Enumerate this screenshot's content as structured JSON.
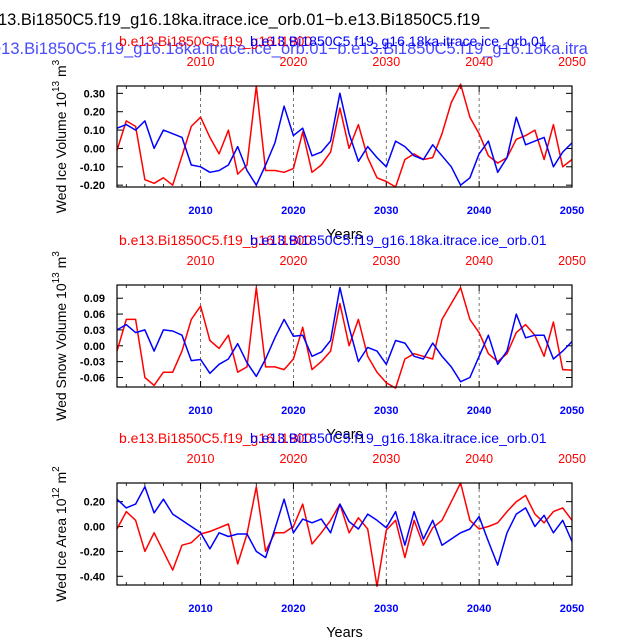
{
  "title": {
    "line1": "13.Bi1850C5.f19_g16.18ka.itrace.ice_orb.01−b.e13.Bi1850C5.f19_",
    "line2": "e13.Bi1850C5.f19_g16.18ka.itrace.ice_orb.01−b.e13.Bi1850C5.f19_g16.18ka.itra",
    "line1_color": "#000000",
    "line2_color": "#4a4aff"
  },
  "colors": {
    "red": "#ff0000",
    "blue": "#0000ff",
    "axis": "#000000"
  },
  "chart_data": [
    {
      "type": "line",
      "legend_red": "b.e13.Bi1850C5.f19_g16.i1900",
      "legend_blue": "b.e13.Bi1850C5.f19_g16.18ka.itrace.ice_orb.01",
      "ylabel": "Wed Ice Volume 10^13 m^3",
      "ylabel_main": "Wed Ice Volume 10",
      "ylabel_exp1": "13",
      "ylabel_mid": " m",
      "ylabel_exp2": "3",
      "xlabel": "Years",
      "xlim": [
        2001,
        2050
      ],
      "ylim": [
        -0.21,
        0.34
      ],
      "yticks": [
        -0.2,
        -0.1,
        0.0,
        0.1,
        0.2,
        0.3
      ],
      "yticklabels": [
        "-0.20",
        "-0.10",
        "0.00",
        "0.10",
        "0.20",
        "0.30"
      ],
      "xticks": [
        2010,
        2020,
        2030,
        2040,
        2050
      ],
      "xticklabels": [
        "2010",
        "2020",
        "2030",
        "2040",
        "2050"
      ],
      "x": [
        2001,
        2002,
        2003,
        2004,
        2005,
        2006,
        2007,
        2008,
        2009,
        2010,
        2011,
        2012,
        2013,
        2014,
        2015,
        2016,
        2017,
        2018,
        2019,
        2020,
        2021,
        2022,
        2023,
        2024,
        2025,
        2026,
        2027,
        2028,
        2029,
        2030,
        2031,
        2032,
        2033,
        2034,
        2035,
        2036,
        2037,
        2038,
        2039,
        2040,
        2041,
        2042,
        2043,
        2044,
        2045,
        2046,
        2047,
        2048,
        2049,
        2050
      ],
      "series": [
        {
          "name": "b.e13.Bi1850C5.f19_g16.i1900",
          "color": "red",
          "values": [
            -0.01,
            0.15,
            0.12,
            -0.17,
            -0.19,
            -0.16,
            -0.2,
            -0.04,
            0.12,
            0.17,
            0.06,
            -0.03,
            0.1,
            -0.14,
            -0.09,
            0.34,
            -0.12,
            -0.12,
            -0.13,
            -0.11,
            0.09,
            -0.13,
            -0.09,
            -0.02,
            0.22,
            0.0,
            0.13,
            -0.05,
            -0.16,
            -0.18,
            -0.21,
            -0.06,
            -0.03,
            -0.06,
            -0.05,
            0.08,
            0.25,
            0.35,
            0.17,
            0.08,
            -0.04,
            -0.08,
            -0.05,
            0.05,
            0.07,
            0.1,
            -0.06,
            0.13,
            -0.1,
            -0.06
          ]
        },
        {
          "name": "b.e13.Bi1850C5.f19_g16.18ka.itrace.ice_orb.01",
          "color": "blue",
          "values": [
            0.11,
            0.13,
            0.1,
            0.15,
            0.0,
            0.1,
            0.08,
            0.06,
            -0.09,
            -0.1,
            -0.13,
            -0.12,
            -0.09,
            0.01,
            -0.12,
            -0.2,
            -0.09,
            0.03,
            0.23,
            0.07,
            0.11,
            -0.04,
            -0.02,
            0.04,
            0.3,
            0.08,
            -0.07,
            0.01,
            -0.05,
            -0.1,
            0.04,
            0.01,
            -0.04,
            -0.06,
            0.02,
            -0.04,
            -0.1,
            -0.2,
            -0.16,
            -0.03,
            0.04,
            -0.13,
            -0.05,
            0.17,
            0.02,
            0.04,
            0.06,
            -0.1,
            -0.02,
            0.03
          ]
        }
      ]
    },
    {
      "type": "line",
      "legend_red": "b.e13.Bi1850C5.f19_g16.i1900",
      "legend_blue": "b.e13.Bi1850C5.f19_g16.18ka.itrace.ice_orb.01",
      "ylabel": "Wed Snow Volume 10^13 m^3",
      "ylabel_main": "Wed Snow Volume 10",
      "ylabel_exp1": "13",
      "ylabel_mid": " m",
      "ylabel_exp2": "3",
      "xlabel": "Years",
      "xlim": [
        2001,
        2050
      ],
      "ylim": [
        -0.078,
        0.115
      ],
      "yticks": [
        -0.06,
        -0.03,
        0.0,
        0.03,
        0.06,
        0.09
      ],
      "yticklabels": [
        "-0.06",
        "-0.03",
        "0.00",
        "0.03",
        "0.06",
        "0.09"
      ],
      "xticks": [
        2010,
        2020,
        2030,
        2040,
        2050
      ],
      "xticklabels": [
        "2010",
        "2020",
        "2030",
        "2040",
        "2050"
      ],
      "x": [
        2001,
        2002,
        2003,
        2004,
        2005,
        2006,
        2007,
        2008,
        2009,
        2010,
        2011,
        2012,
        2013,
        2014,
        2015,
        2016,
        2017,
        2018,
        2019,
        2020,
        2021,
        2022,
        2023,
        2024,
        2025,
        2026,
        2027,
        2028,
        2029,
        2030,
        2031,
        2032,
        2033,
        2034,
        2035,
        2036,
        2037,
        2038,
        2039,
        2040,
        2041,
        2042,
        2043,
        2044,
        2045,
        2046,
        2047,
        2048,
        2049,
        2050
      ],
      "series": [
        {
          "name": "b.e13.Bi1850C5.f19_g16.i1900",
          "color": "red",
          "values": [
            -0.01,
            0.05,
            0.05,
            -0.06,
            -0.075,
            -0.05,
            -0.05,
            -0.01,
            0.05,
            0.075,
            0.01,
            -0.005,
            0.02,
            -0.05,
            -0.04,
            0.11,
            -0.04,
            -0.04,
            -0.045,
            -0.025,
            0.035,
            -0.045,
            -0.03,
            -0.01,
            0.08,
            0.0,
            0.05,
            -0.02,
            -0.05,
            -0.07,
            -0.08,
            -0.025,
            -0.015,
            -0.02,
            -0.025,
            0.05,
            0.08,
            0.11,
            0.05,
            0.025,
            -0.015,
            -0.03,
            -0.015,
            0.025,
            0.04,
            0.02,
            -0.02,
            0.045,
            -0.045,
            -0.046
          ]
        },
        {
          "name": "b.e13.Bi1850C5.f19_g16.18ka.itrace.ice_orb.01",
          "color": "blue",
          "values": [
            0.03,
            0.04,
            0.025,
            0.03,
            -0.01,
            0.03,
            0.028,
            0.02,
            -0.028,
            -0.026,
            -0.052,
            -0.035,
            -0.025,
            0.004,
            -0.032,
            -0.058,
            -0.025,
            0.015,
            0.05,
            0.018,
            0.02,
            -0.02,
            -0.012,
            0.01,
            0.11,
            0.035,
            -0.03,
            -0.003,
            -0.01,
            -0.035,
            0.01,
            0.005,
            -0.02,
            -0.025,
            0.005,
            -0.02,
            -0.04,
            -0.068,
            -0.06,
            -0.02,
            0.02,
            -0.035,
            -0.01,
            0.06,
            0.015,
            0.02,
            0.02,
            -0.025,
            -0.01,
            0.008
          ]
        }
      ]
    },
    {
      "type": "line",
      "legend_red": "b.e13.Bi1850C5.f19_g16.i1900",
      "legend_blue": "b.e13.Bi1850C5.f19_g16.18ka.itrace.ice_orb.01",
      "ylabel": "Wed Ice Area 10^12 m^2",
      "ylabel_main": "Wed Ice Area 10",
      "ylabel_exp1": "12",
      "ylabel_mid": " m",
      "ylabel_exp2": "2",
      "xlabel": "Years",
      "xlim": [
        2001,
        2050
      ],
      "ylim": [
        -0.47,
        0.35
      ],
      "yticks": [
        -0.4,
        -0.2,
        0.0,
        0.2
      ],
      "yticklabels": [
        "-0.40",
        "-0.20",
        "0.00",
        "0.20"
      ],
      "xticks": [
        2010,
        2020,
        2030,
        2040,
        2050
      ],
      "xticklabels": [
        "2010",
        "2020",
        "2030",
        "2040",
        "2050"
      ],
      "x": [
        2001,
        2002,
        2003,
        2004,
        2005,
        2006,
        2007,
        2008,
        2009,
        2010,
        2011,
        2012,
        2013,
        2014,
        2015,
        2016,
        2017,
        2018,
        2019,
        2020,
        2021,
        2022,
        2023,
        2024,
        2025,
        2026,
        2027,
        2028,
        2029,
        2030,
        2031,
        2032,
        2033,
        2034,
        2035,
        2036,
        2037,
        2038,
        2039,
        2040,
        2041,
        2042,
        2043,
        2044,
        2045,
        2046,
        2047,
        2048,
        2049,
        2050
      ],
      "series": [
        {
          "name": "b.e13.Bi1850C5.f19_g16.i1900",
          "color": "red",
          "values": [
            -0.02,
            0.12,
            0.05,
            -0.2,
            -0.05,
            -0.2,
            -0.35,
            -0.15,
            -0.13,
            -0.06,
            -0.04,
            -0.01,
            0.02,
            -0.3,
            -0.06,
            0.32,
            -0.2,
            -0.05,
            -0.05,
            0.0,
            0.18,
            -0.14,
            -0.05,
            0.05,
            0.18,
            -0.05,
            0.07,
            -0.02,
            -0.48,
            -0.03,
            0.05,
            -0.25,
            0.05,
            -0.15,
            -0.01,
            0.05,
            0.2,
            0.35,
            0.05,
            -0.02,
            0.0,
            0.03,
            0.12,
            0.2,
            0.25,
            0.1,
            0.03,
            0.12,
            0.15,
            0.05
          ]
        },
        {
          "name": "b.e13.Bi1850C5.f19_g16.18ka.itrace.ice_orb.01",
          "color": "blue",
          "values": [
            0.22,
            0.15,
            0.18,
            0.32,
            0.11,
            0.22,
            0.1,
            0.05,
            0.0,
            -0.05,
            -0.18,
            -0.05,
            -0.08,
            -0.06,
            -0.06,
            -0.2,
            -0.25,
            -0.02,
            0.22,
            -0.05,
            0.06,
            0.03,
            0.06,
            -0.05,
            0.18,
            0.04,
            -0.02,
            0.1,
            0.05,
            -0.01,
            0.12,
            -0.15,
            0.12,
            -0.1,
            0.05,
            -0.15,
            -0.1,
            -0.05,
            -0.02,
            0.08,
            -0.12,
            -0.31,
            -0.05,
            0.1,
            0.15,
            0.0,
            0.09,
            -0.05,
            0.05,
            -0.12
          ]
        }
      ]
    }
  ]
}
